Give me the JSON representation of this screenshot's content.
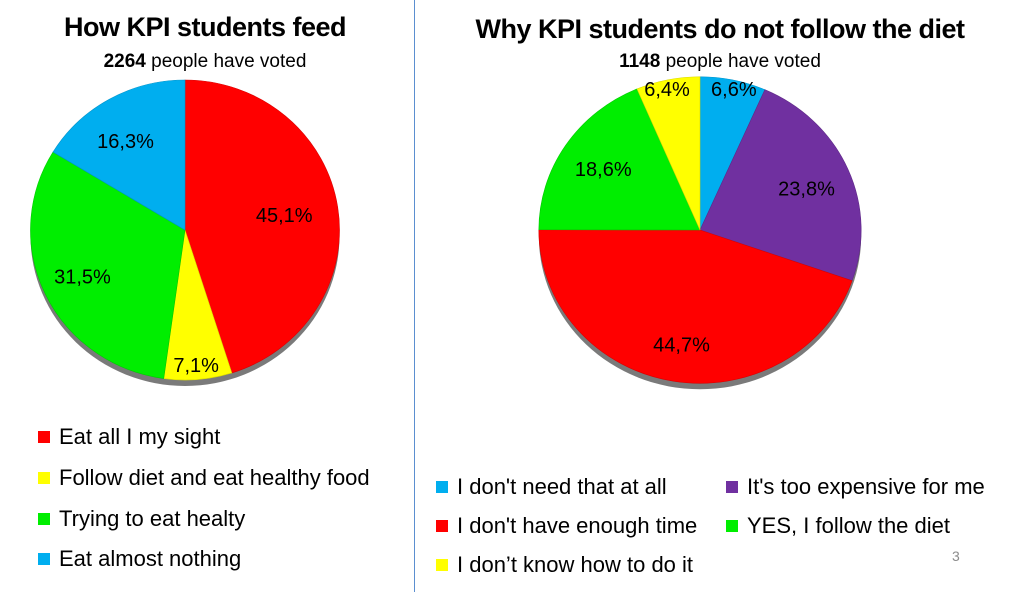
{
  "page_number": "3",
  "chart_data": [
    {
      "type": "pie",
      "title": "How KPI students feed",
      "votes": "2264",
      "votes_suffix": " people have voted",
      "slices": [
        {
          "label": "Eat all I my sight",
          "value": 45.1,
          "text": "45,1%",
          "color": "#ff0000"
        },
        {
          "label": "Follow diet and eat healthy food",
          "value": 7.1,
          "text": "7,1%",
          "color": "#ffff00"
        },
        {
          "label": "Trying to eat healty",
          "value": 31.5,
          "text": "31,5%",
          "color": "#00ee00"
        },
        {
          "label": "Eat almost nothing",
          "value": 16.3,
          "text": "16,3%",
          "color": "#00aeef"
        }
      ]
    },
    {
      "type": "pie",
      "title": "Why KPI students do not follow the diet",
      "votes": "1148",
      "votes_suffix": " people have voted",
      "slices": [
        {
          "label": "I don't need that at all",
          "value": 6.6,
          "text": "6,6%",
          "color": "#00aeef"
        },
        {
          "label": "It's too expensive for me",
          "value": 23.8,
          "text": "23,8%",
          "color": "#7030a0"
        },
        {
          "label": "I don't have enough time",
          "value": 44.7,
          "text": "44,7%",
          "color": "#ff0000"
        },
        {
          "label": "YES, I follow the diet",
          "value": 18.6,
          "text": "18,6%",
          "color": "#00ee00"
        },
        {
          "label": "I don’t know how to do it",
          "value": 6.4,
          "text": "6,4%",
          "color": "#ffff00"
        }
      ]
    }
  ]
}
